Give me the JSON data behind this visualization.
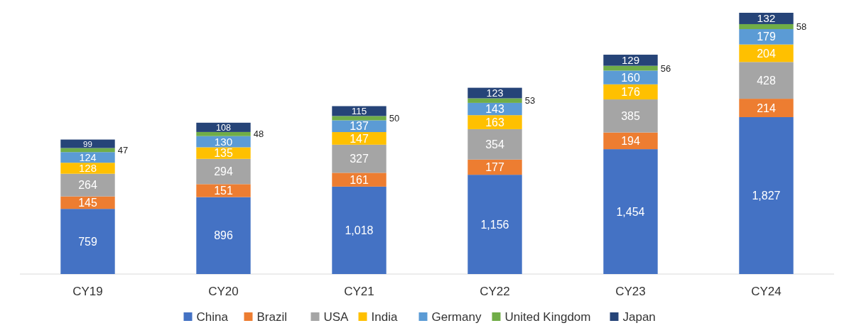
{
  "chart_data": {
    "type": "bar",
    "stacked": true,
    "data_labels": true,
    "legend": "bottom",
    "categories": [
      "CY19",
      "CY20",
      "CY21",
      "CY22",
      "CY23",
      "CY24"
    ],
    "series": [
      {
        "name": "China",
        "color": "#4472c4",
        "values": [
          759,
          896,
          1018,
          1156,
          1454,
          1827
        ],
        "value_labels": [
          "759",
          "896",
          "1,018",
          "1,156",
          "1,454",
          "1,827"
        ]
      },
      {
        "name": "Brazil",
        "color": "#ed7d31",
        "values": [
          145,
          151,
          161,
          177,
          194,
          214
        ]
      },
      {
        "name": "USA",
        "color": "#a5a5a5",
        "values": [
          264,
          294,
          327,
          354,
          385,
          428
        ]
      },
      {
        "name": "India",
        "color": "#ffc000",
        "values": [
          128,
          135,
          147,
          163,
          176,
          204
        ]
      },
      {
        "name": "Germany",
        "color": "#5b9bd5",
        "values": [
          124,
          130,
          137,
          143,
          160,
          179
        ]
      },
      {
        "name": "United Kingdom",
        "color": "#70ad47",
        "values": [
          47,
          48,
          50,
          53,
          56,
          58
        ]
      },
      {
        "name": "Japan",
        "color": "#264478",
        "values": [
          99,
          108,
          115,
          123,
          129,
          132
        ]
      }
    ]
  }
}
